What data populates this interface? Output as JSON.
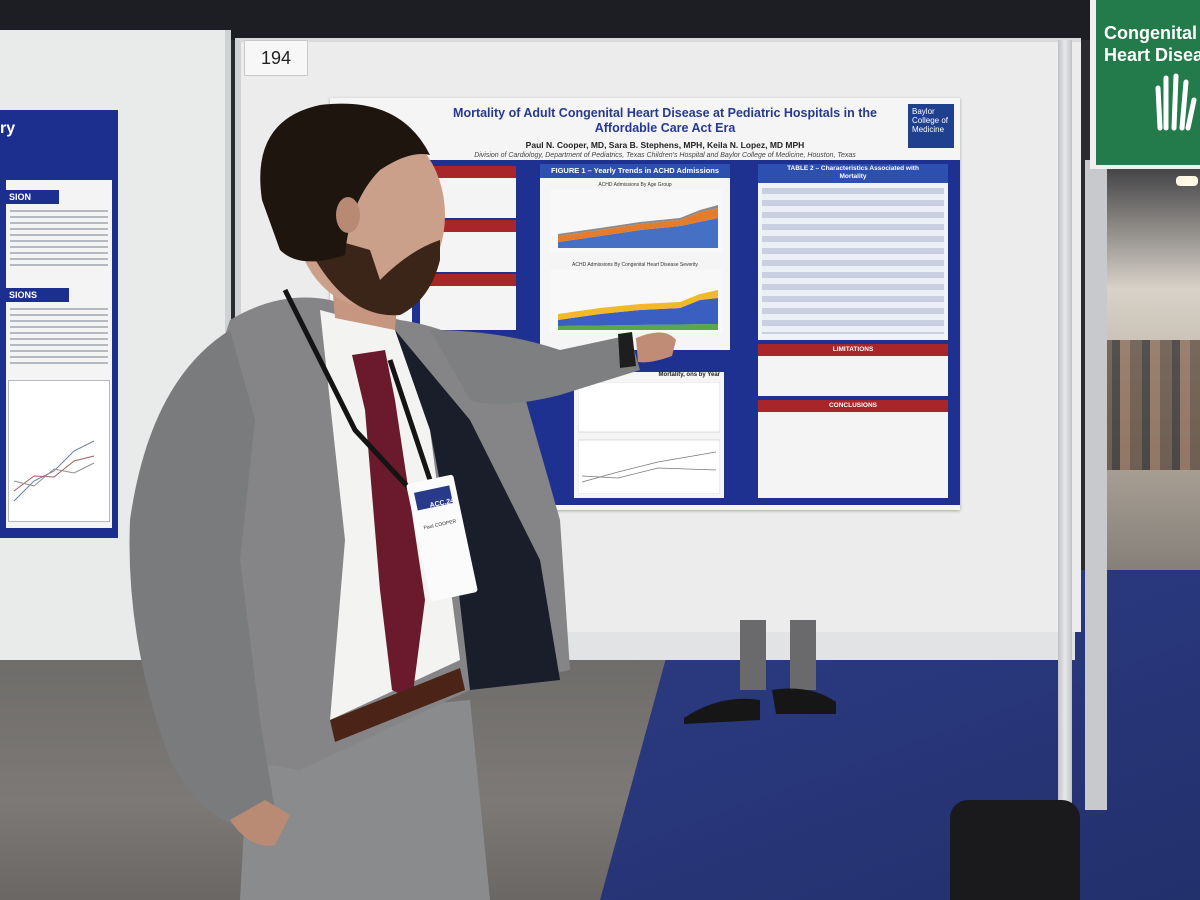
{
  "scene": {
    "board_number": "194",
    "sign_text": [
      "Congenital",
      "Heart Diseas"
    ]
  },
  "left_poster": {
    "top_text": "ry",
    "section_headers": [
      "SION",
      "SIONS"
    ]
  },
  "poster": {
    "title_line1": "Mortality of Adult Congenital Heart Disease at Pediatric Hospitals in the",
    "title_line2": "Affordable Care Act Era",
    "authors": "Paul N. Cooper, MD, Sara B. Stephens, MPH, Keila N. Lopez, MD MPH",
    "affiliation": "Division of Cardiology, Department of Pediatrics, Texas Children's Hospital and Baylor College of Medicine, Houston, Texas",
    "logo_line1": "Baylor",
    "logo_line2": "College of",
    "logo_line3": "Medicine",
    "figure1_title": "FIGURE 1 – Yearly Trends in ACHD Admissions",
    "figure1_cap_a": "ACHD Admissions By Age Group",
    "figure1_cap_b": "ACHD Admissions By Congenital Heart Disease Severity",
    "table2_title_line1": "TABLE 2 – Characteristics Associated with",
    "table2_title_line2": "Mortality",
    "limitations": "LIMITATIONS",
    "conclusions": "CONCLUSIONS",
    "figure2_partial": "Mortality, ons by Year"
  },
  "badge": {
    "name": "Paul COOPER",
    "org": "ACC.24"
  },
  "colors": {
    "poster_navy": "#1e3190",
    "section_red": "#a8262a",
    "sign_green": "#237a4a",
    "carpet_blue": "#28367a"
  }
}
